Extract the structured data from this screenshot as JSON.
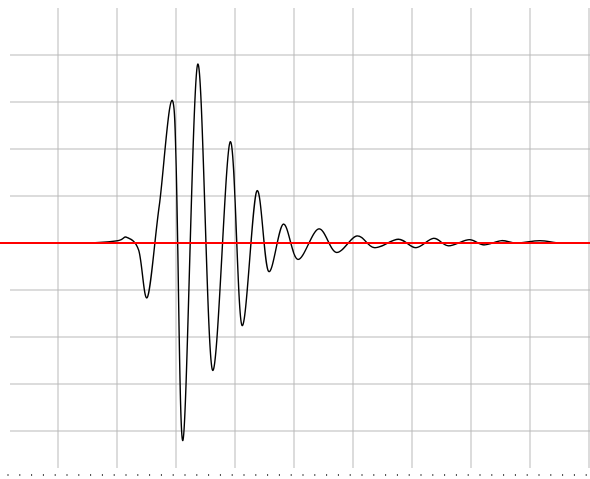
{
  "chart_data": {
    "type": "line",
    "title": "",
    "xlabel": "",
    "ylabel": "",
    "grid": true,
    "grid_divisions": {
      "x": 10,
      "y": 10
    },
    "minor_ticks_per_division": 5,
    "xlim": [
      0,
      10
    ],
    "ylim": [
      -5,
      5
    ],
    "series": [
      {
        "color": "#000000",
        "x": [
          0.0,
          1.0,
          1.5,
          2.0,
          2.15,
          2.35,
          2.5,
          2.7,
          2.95,
          3.1,
          3.35,
          3.6,
          3.9,
          4.1,
          4.35,
          4.55,
          4.8,
          5.05,
          5.4,
          5.7,
          6.05,
          6.35,
          6.75,
          7.05,
          7.35,
          7.6,
          7.95,
          8.2,
          8.5,
          8.75,
          9.15,
          9.5,
          10.0
        ],
        "y": [
          0.0,
          0.0,
          0.0,
          0.05,
          0.12,
          -0.15,
          -1.15,
          0.8,
          2.85,
          -4.2,
          3.8,
          -2.7,
          2.15,
          -1.75,
          1.1,
          -0.6,
          0.4,
          -0.35,
          0.3,
          -0.2,
          0.15,
          -0.1,
          0.08,
          -0.1,
          0.1,
          -0.06,
          0.07,
          -0.04,
          0.05,
          0.0,
          0.05,
          0.0,
          0.0
        ]
      },
      {
        "color": "#ff0000",
        "x": [
          0,
          10
        ],
        "y": [
          0,
          0
        ]
      }
    ]
  }
}
